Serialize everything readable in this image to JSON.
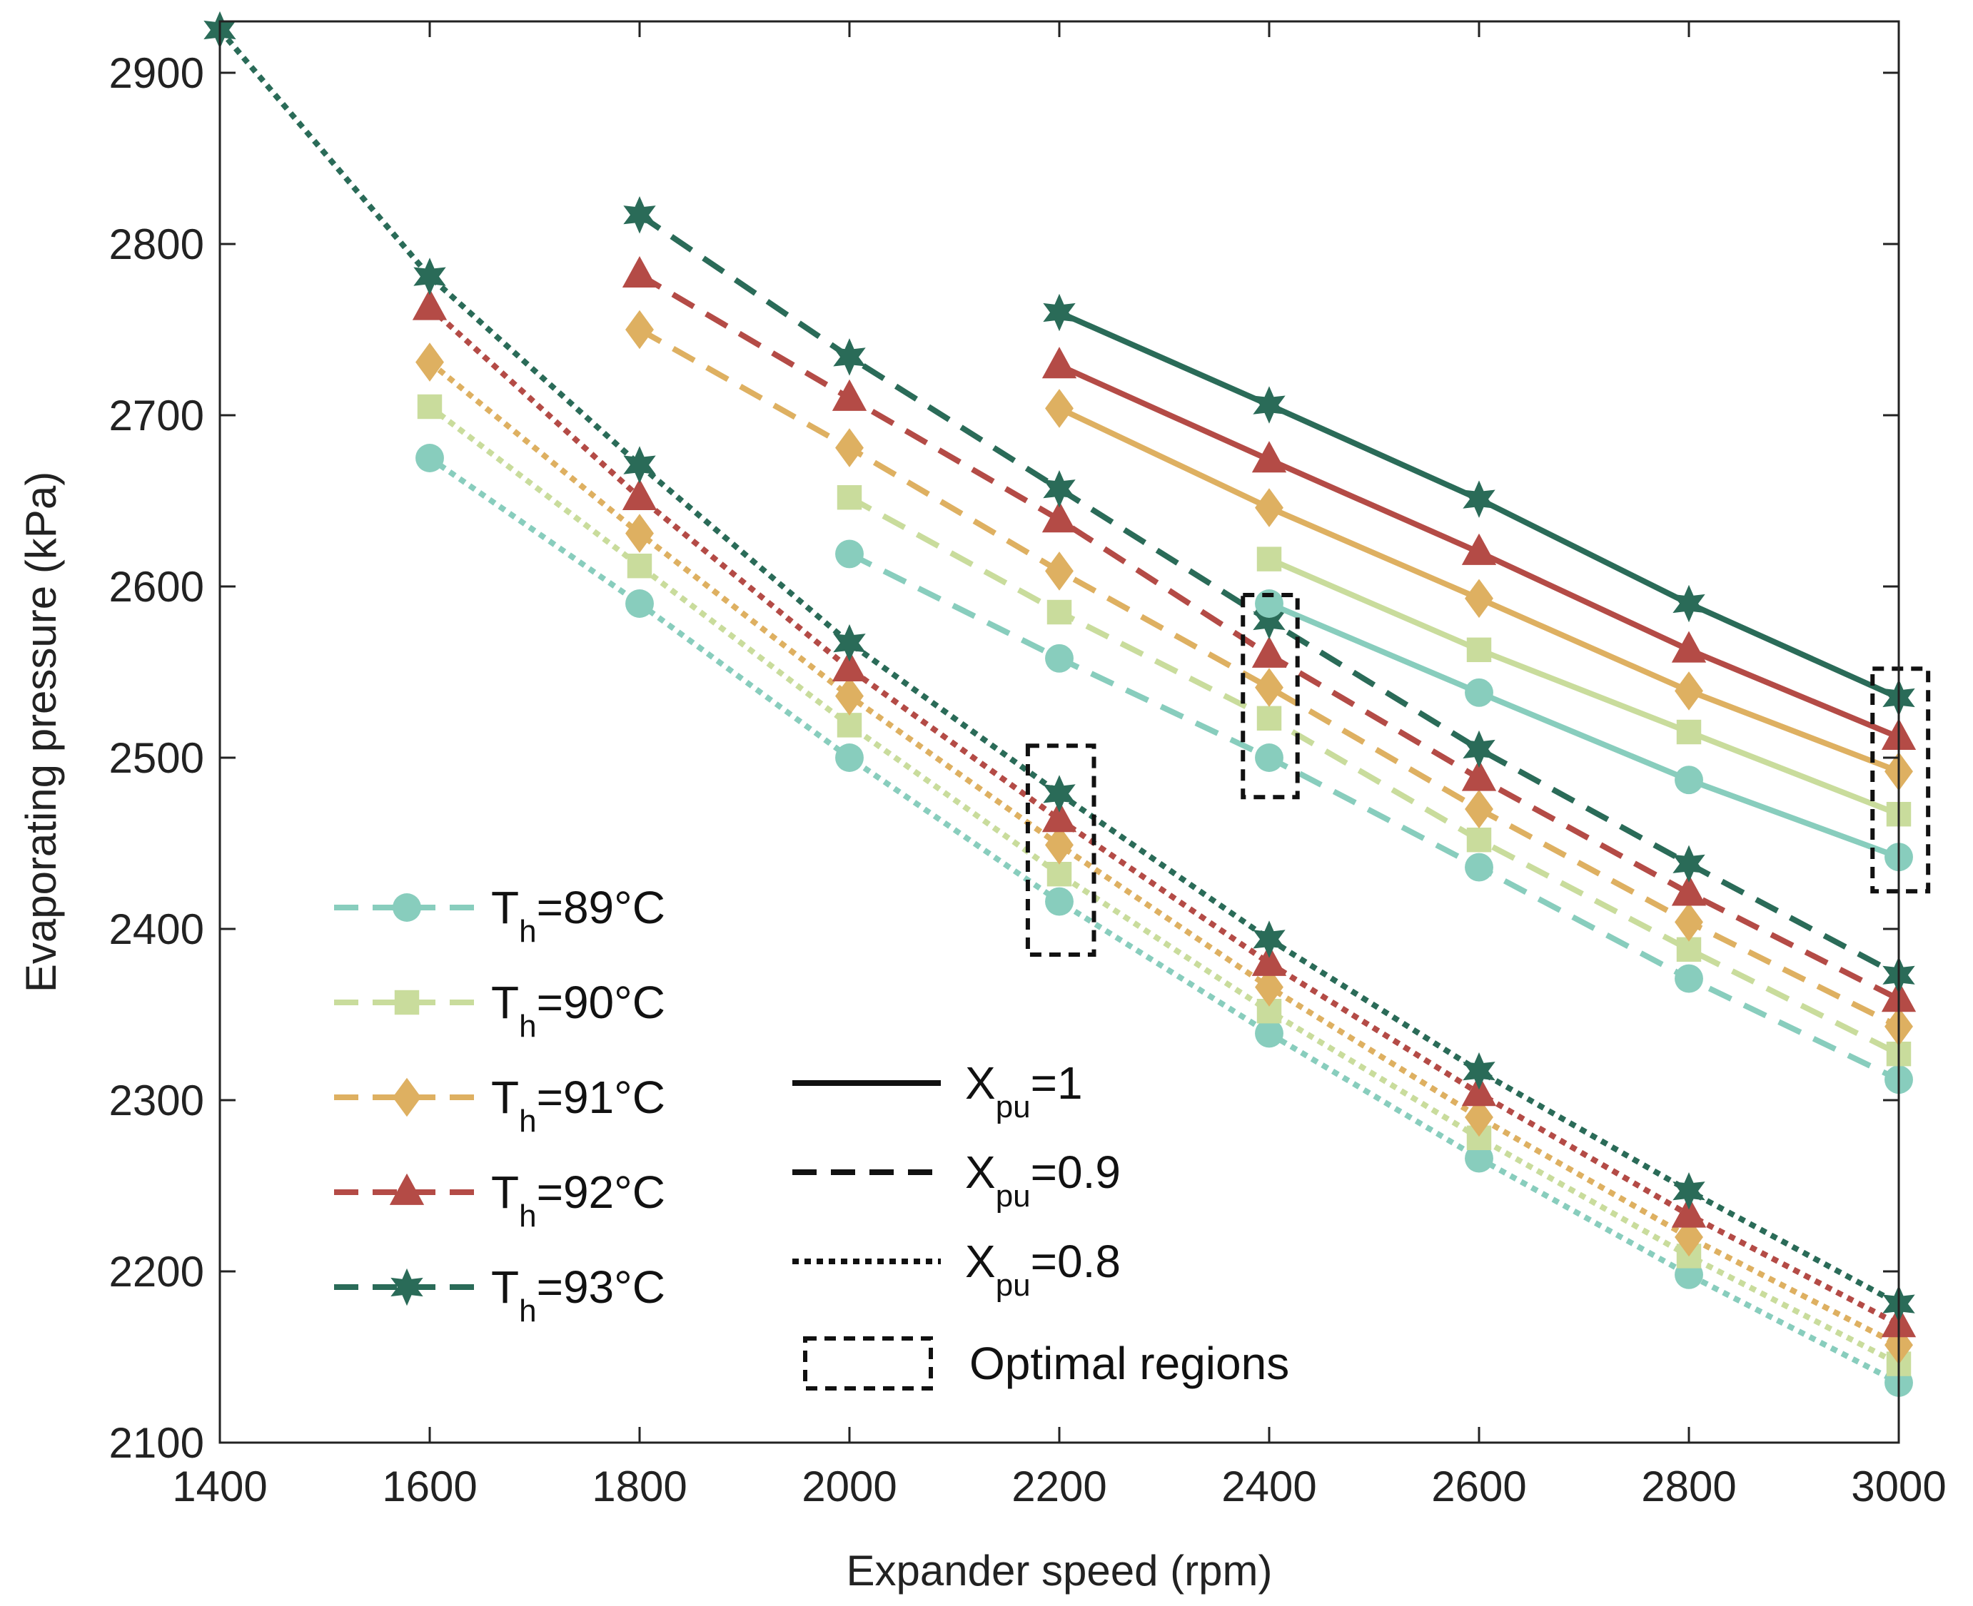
{
  "chart_data": {
    "type": "line",
    "xlabel": "Expander speed (rpm)",
    "ylabel": "Evaporating pressure (kPa)",
    "xlim": [
      1400,
      3000
    ],
    "ylim": [
      2100,
      2930
    ],
    "xticks": [
      1400,
      1600,
      1800,
      2000,
      2200,
      2400,
      2600,
      2800,
      3000
    ],
    "yticks": [
      2100,
      2200,
      2300,
      2400,
      2500,
      2600,
      2700,
      2800,
      2900
    ],
    "grid": false,
    "temperatures": [
      {
        "key": "89",
        "label_main": "T",
        "label_sub": "h",
        "label_rest": "=89°C",
        "color": "#88cdbd",
        "marker": "circle"
      },
      {
        "key": "90",
        "label_main": "T",
        "label_sub": "h",
        "label_rest": "=90°C",
        "color": "#c9dc9c",
        "marker": "square"
      },
      {
        "key": "91",
        "label_main": "T",
        "label_sub": "h",
        "label_rest": "=91°C",
        "color": "#deb061",
        "marker": "diamond"
      },
      {
        "key": "92",
        "label_main": "T",
        "label_sub": "h",
        "label_rest": "=92°C",
        "color": "#b44b46",
        "marker": "triangle"
      },
      {
        "key": "93",
        "label_main": "T",
        "label_sub": "h",
        "label_rest": "=93°C",
        "color": "#2a6b58",
        "marker": "star"
      }
    ],
    "styles": [
      {
        "key": "x1",
        "label_main": "X",
        "label_sub": "pu",
        "label_rest": "=1",
        "dash": "solid"
      },
      {
        "key": "x09",
        "label_main": "X",
        "label_sub": "pu",
        "label_rest": "=0.9",
        "dash": "dashed"
      },
      {
        "key": "x08",
        "label_main": "X",
        "label_sub": "pu",
        "label_rest": "=0.8",
        "dash": "dotted"
      }
    ],
    "optimal_label": "Optimal regions",
    "series": [
      {
        "temp": "89",
        "style": "x1",
        "x": [
          2400,
          2600,
          2800,
          3000
        ],
        "y": [
          2590,
          2538,
          2487,
          2442
        ]
      },
      {
        "temp": "90",
        "style": "x1",
        "x": [
          2400,
          2600,
          2800,
          3000
        ],
        "y": [
          2616,
          2563,
          2515,
          2467
        ]
      },
      {
        "temp": "91",
        "style": "x1",
        "x": [
          2200,
          2400,
          2600,
          2800,
          3000
        ],
        "y": [
          2704,
          2646,
          2593,
          2539,
          2492
        ]
      },
      {
        "temp": "92",
        "style": "x1",
        "x": [
          2200,
          2400,
          2600,
          2800,
          3000
        ],
        "y": [
          2729,
          2674,
          2620,
          2563,
          2512
        ]
      },
      {
        "temp": "93",
        "style": "x1",
        "x": [
          2200,
          2400,
          2600,
          2800,
          3000
        ],
        "y": [
          2760,
          2706,
          2651,
          2590,
          2535
        ]
      },
      {
        "temp": "89",
        "style": "x09",
        "x": [
          2000,
          2200,
          2400,
          2600,
          2800,
          3000
        ],
        "y": [
          2619,
          2558,
          2500,
          2436,
          2371,
          2312
        ]
      },
      {
        "temp": "90",
        "style": "x09",
        "x": [
          2000,
          2200,
          2400,
          2600,
          2800,
          3000
        ],
        "y": [
          2652,
          2585,
          2523,
          2452,
          2388,
          2327
        ]
      },
      {
        "temp": "91",
        "style": "x09",
        "x": [
          1800,
          2000,
          2200,
          2400,
          2600,
          2800,
          3000
        ],
        "y": [
          2750,
          2681,
          2609,
          2541,
          2470,
          2404,
          2343
        ]
      },
      {
        "temp": "92",
        "style": "x09",
        "x": [
          1800,
          2000,
          2200,
          2400,
          2600,
          2800,
          3000
        ],
        "y": [
          2782,
          2710,
          2639,
          2560,
          2488,
          2421,
          2359
        ]
      },
      {
        "temp": "93",
        "style": "x09",
        "x": [
          1800,
          2000,
          2200,
          2400,
          2600,
          2800,
          3000
        ],
        "y": [
          2817,
          2734,
          2657,
          2580,
          2505,
          2438,
          2373
        ]
      },
      {
        "temp": "89",
        "style": "x08",
        "x": [
          1600,
          1800,
          2000,
          2200,
          2400,
          2600,
          2800,
          3000
        ],
        "y": [
          2675,
          2590,
          2500,
          2416,
          2339,
          2266,
          2198,
          2135
        ]
      },
      {
        "temp": "90",
        "style": "x08",
        "x": [
          1600,
          1800,
          2000,
          2200,
          2400,
          2600,
          2800,
          3000
        ],
        "y": [
          2705,
          2612,
          2519,
          2432,
          2352,
          2278,
          2209,
          2146
        ]
      },
      {
        "temp": "91",
        "style": "x08",
        "x": [
          1600,
          1800,
          2000,
          2200,
          2400,
          2600,
          2800,
          3000
        ],
        "y": [
          2731,
          2631,
          2536,
          2449,
          2366,
          2290,
          2220,
          2157
        ]
      },
      {
        "temp": "92",
        "style": "x08",
        "x": [
          1600,
          1800,
          2000,
          2200,
          2400,
          2600,
          2800,
          3000
        ],
        "y": [
          2763,
          2652,
          2552,
          2464,
          2380,
          2304,
          2233,
          2169
        ]
      },
      {
        "temp": "93",
        "style": "x08",
        "x": [
          1400,
          1600,
          1800,
          2000,
          2200,
          2400,
          2600,
          2800,
          3000
        ],
        "y": [
          2925,
          2781,
          2671,
          2567,
          2479,
          2394,
          2317,
          2247,
          2181
        ]
      }
    ],
    "optimal_regions": [
      {
        "x": [
          2170,
          2233
        ],
        "y": [
          2385,
          2507
        ]
      },
      {
        "x": [
          2375,
          2427
        ],
        "y": [
          2477,
          2595
        ]
      },
      {
        "x": [
          2975,
          3028
        ],
        "y": [
          2422,
          2552
        ]
      }
    ]
  }
}
